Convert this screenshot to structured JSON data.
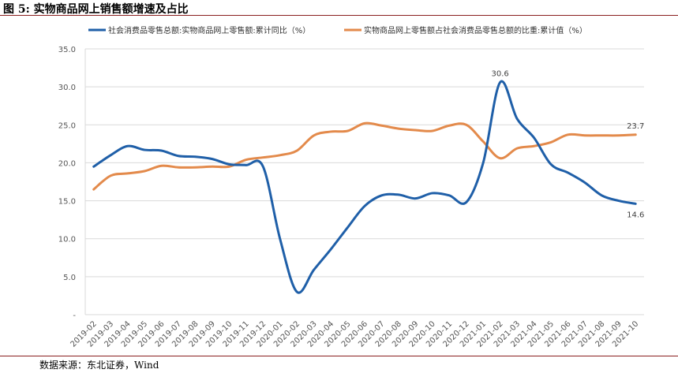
{
  "header": {
    "title": "图 5:  实物商品网上销售额增速及占比"
  },
  "footer": {
    "source": "数据来源：东北证券，Wind"
  },
  "chart_data": {
    "type": "line",
    "categories": [
      "2019-02",
      "2019-03",
      "2019-04",
      "2019-05",
      "2019-06",
      "2019-07",
      "2019-08",
      "2019-09",
      "2019-10",
      "2019-11",
      "2019-12",
      "2020-01",
      "2020-02",
      "2020-03",
      "2020-04",
      "2020-05",
      "2020-06",
      "2020-07",
      "2020-08",
      "2020-09",
      "2020-10",
      "2020-11",
      "2020-12",
      "2021-01",
      "2021-02",
      "2021-03",
      "2021-04",
      "2021-05",
      "2021-06",
      "2021-07",
      "2021-08",
      "2021-09",
      "2021-10"
    ],
    "ylim": [
      0,
      35
    ],
    "yticks": [
      "-",
      "5.0",
      "10.0",
      "15.0",
      "20.0",
      "25.0",
      "30.0",
      "35.0"
    ],
    "grid": true,
    "legend": "top",
    "series": [
      {
        "name": "社会消费品零售总额:实物商品网上零售额:累计同比（%）",
        "color": "#1f5fa8",
        "values": [
          19.5,
          21.0,
          22.2,
          21.7,
          21.6,
          20.9,
          20.8,
          20.5,
          19.8,
          19.7,
          19.5,
          10.0,
          3.0,
          5.9,
          8.6,
          11.5,
          14.3,
          15.7,
          15.8,
          15.3,
          16.0,
          15.7,
          14.8,
          20.0,
          30.6,
          25.8,
          23.3,
          19.8,
          18.7,
          17.4,
          15.7,
          15.0,
          14.6
        ]
      },
      {
        "name": "实物商品网上零售额占社会消费品零售总额的比重:累计值（%）",
        "color": "#e38a4b",
        "values": [
          16.5,
          18.3,
          18.6,
          18.9,
          19.6,
          19.4,
          19.4,
          19.5,
          19.5,
          20.4,
          20.7,
          21.0,
          21.6,
          23.6,
          24.1,
          24.2,
          25.2,
          24.9,
          24.5,
          24.3,
          24.2,
          24.9,
          25.0,
          22.8,
          20.6,
          21.9,
          22.2,
          22.7,
          23.7,
          23.6,
          23.6,
          23.6,
          23.7
        ]
      }
    ],
    "data_labels": [
      {
        "series": 0,
        "index": 24,
        "text": "30.6",
        "pos": "above"
      },
      {
        "series": 0,
        "index": 32,
        "text": "14.6",
        "pos": "below"
      },
      {
        "series": 1,
        "index": 32,
        "text": "23.7",
        "pos": "above"
      }
    ]
  }
}
